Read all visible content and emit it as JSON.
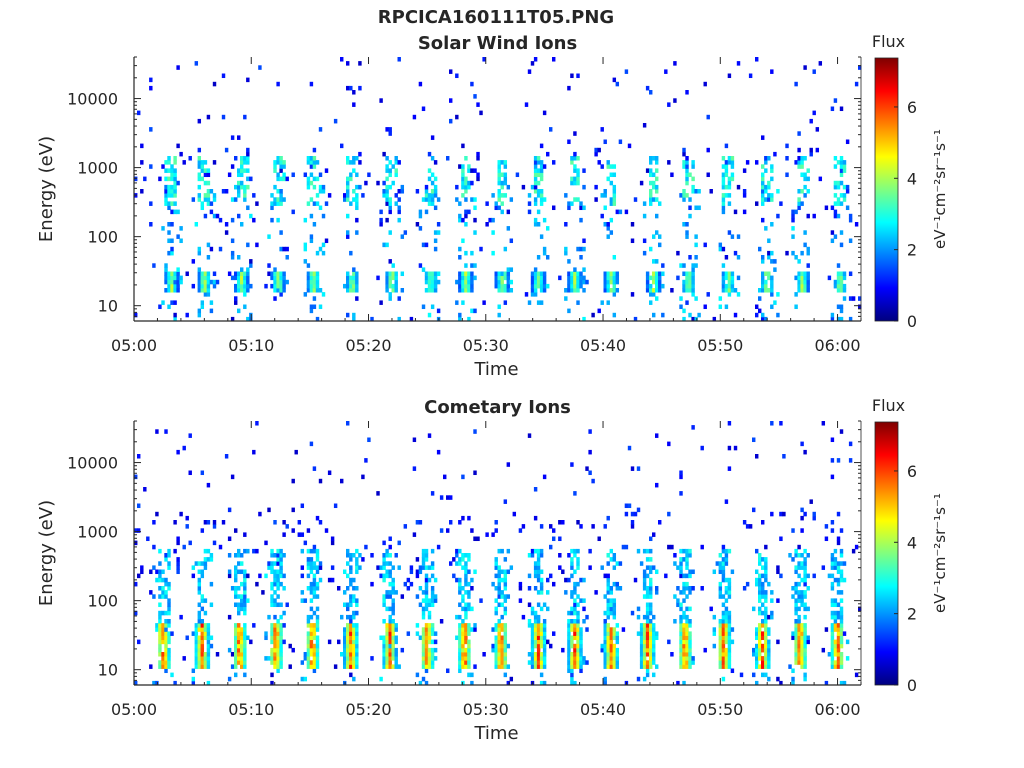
{
  "figure_title": "RPCICA160111T05.PNG",
  "colors": {
    "colormap": "jet",
    "axis": "#262626",
    "background": "#ffffff"
  },
  "chart_data": [
    {
      "type": "heatmap",
      "title": "Solar Wind Ions",
      "xlabel": "Time",
      "ylabel": "Energy (eV)",
      "yscale": "log",
      "ylim": [
        6,
        40000
      ],
      "xlim": [
        "05:00",
        "06:02"
      ],
      "xticks": [
        "05:00",
        "05:10",
        "05:20",
        "05:30",
        "05:40",
        "05:50",
        "06:00"
      ],
      "yticks": [
        "10",
        "100",
        "1000",
        "10000"
      ],
      "colorbar": {
        "title": "Flux",
        "unit": "eV⁻¹cm⁻²sr⁻¹s⁻¹",
        "range": [
          0,
          7.4
        ],
        "ticks": [
          "0",
          "2",
          "4",
          "6"
        ]
      },
      "pulse_times_min": [
        3.2,
        6.0,
        9.2,
        12.3,
        15.3,
        18.6,
        22.0,
        25.3,
        28.3,
        31.4,
        34.5,
        37.6,
        40.7,
        44.3,
        47.3,
        50.7,
        54.0,
        57.0,
        60.2
      ],
      "features": {
        "low_energy_band_eV": [
          15,
          30
        ],
        "low_energy_peak_flux": 4.5,
        "mid_energy_band_eV": [
          300,
          1500
        ],
        "mid_energy_peak_flux": 3.5,
        "sparse_high_energy_flux": 1.0
      }
    },
    {
      "type": "heatmap",
      "title": "Cometary Ions",
      "xlabel": "Time",
      "ylabel": "Energy (eV)",
      "yscale": "log",
      "ylim": [
        6,
        40000
      ],
      "xlim": [
        "05:00",
        "06:02"
      ],
      "xticks": [
        "05:00",
        "05:10",
        "05:20",
        "05:30",
        "05:40",
        "05:50",
        "06:00"
      ],
      "yticks": [
        "10",
        "100",
        "1000",
        "10000"
      ],
      "colorbar": {
        "title": "Flux",
        "unit": "eV⁻¹cm⁻²sr⁻¹s⁻¹",
        "range": [
          0,
          7.4
        ],
        "ticks": [
          "0",
          "2",
          "4",
          "6"
        ]
      },
      "pulse_times_min": [
        2.5,
        5.8,
        9.0,
        12.1,
        15.2,
        18.5,
        21.8,
        25.0,
        28.2,
        31.3,
        34.5,
        37.6,
        40.7,
        43.8,
        47.0,
        50.3,
        53.6,
        56.8,
        60.0
      ],
      "features": {
        "low_energy_band_eV": [
          10,
          45
        ],
        "low_energy_peak_flux": 6.6,
        "mid_energy_band_eV": [
          50,
          600
        ],
        "mid_energy_peak_flux": 3.0,
        "sparse_high_energy_flux": 1.0
      }
    }
  ]
}
